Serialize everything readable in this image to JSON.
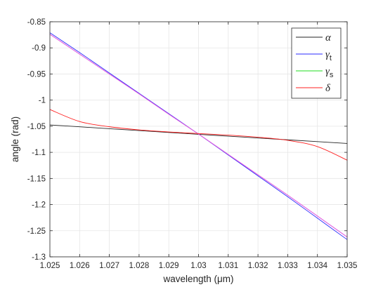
{
  "chart_data": {
    "type": "line",
    "xlabel": "wavelength (μm)",
    "ylabel": "angle (rad)",
    "xlim": [
      1.025,
      1.035
    ],
    "ylim": [
      -1.3,
      -0.85
    ],
    "xticks": [
      "1.025",
      "1.026",
      "1.027",
      "1.028",
      "1.029",
      "1.03",
      "1.031",
      "1.032",
      "1.033",
      "1.034",
      "1.035"
    ],
    "yticks": [
      "-0.85",
      "-0.9",
      "-0.95",
      "-1",
      "-1.05",
      "-1.1",
      "-1.15",
      "-1.2",
      "-1.25",
      "-1.3"
    ],
    "grid": true,
    "legend_position": "top-right",
    "series": [
      {
        "name": "α",
        "color": "#262626",
        "x": [
          1.025,
          1.026,
          1.027,
          1.028,
          1.029,
          1.03,
          1.031,
          1.032,
          1.033,
          1.034,
          1.035
        ],
        "y": [
          -1.0475,
          -1.0511,
          -1.0547,
          -1.0583,
          -1.0619,
          -1.0655,
          -1.069,
          -1.0725,
          -1.076,
          -1.0795,
          -1.083
        ]
      },
      {
        "name": "γt",
        "color": "#2b2bff",
        "x": [
          1.025,
          1.026,
          1.027,
          1.028,
          1.029,
          1.03,
          1.031,
          1.032,
          1.033,
          1.034,
          1.035
        ],
        "y": [
          -0.871,
          -0.909,
          -0.948,
          -0.987,
          -1.026,
          -1.065,
          -1.105,
          -1.145,
          -1.185,
          -1.226,
          -1.267
        ]
      },
      {
        "name": "γs",
        "color": "#22dd22",
        "x": [
          1.025,
          1.026,
          1.027,
          1.028,
          1.029,
          1.03,
          1.031,
          1.032,
          1.033,
          1.034,
          1.035
        ],
        "y": [
          -0.874,
          -0.912,
          -0.95,
          -0.988,
          -1.027,
          -1.065,
          -1.104,
          -1.143,
          -1.182,
          -1.222,
          -1.262
        ]
      },
      {
        "name": "",
        "color": "#ff44ff",
        "x": [
          1.025,
          1.026,
          1.027,
          1.028,
          1.029,
          1.03,
          1.031,
          1.032,
          1.033,
          1.034,
          1.035
        ],
        "y": [
          -0.874,
          -0.912,
          -0.95,
          -0.988,
          -1.027,
          -1.065,
          -1.104,
          -1.143,
          -1.182,
          -1.222,
          -1.262
        ]
      },
      {
        "name": "δ",
        "color": "#ff2020",
        "x": [
          1.025,
          1.026,
          1.027,
          1.028,
          1.029,
          1.03,
          1.031,
          1.032,
          1.033,
          1.034,
          1.035
        ],
        "y": [
          -1.018,
          -1.041,
          -1.051,
          -1.057,
          -1.061,
          -1.064,
          -1.067,
          -1.071,
          -1.077,
          -1.089,
          -1.115
        ]
      }
    ],
    "legend": [
      {
        "symbol": "α",
        "sub": "",
        "color": "#262626"
      },
      {
        "symbol": "γ",
        "sub": "t",
        "color": "#2b2bff"
      },
      {
        "symbol": "γ",
        "sub": "s",
        "color": "#22dd22"
      },
      {
        "symbol": "δ",
        "sub": "",
        "color": "#ff2020"
      }
    ]
  }
}
